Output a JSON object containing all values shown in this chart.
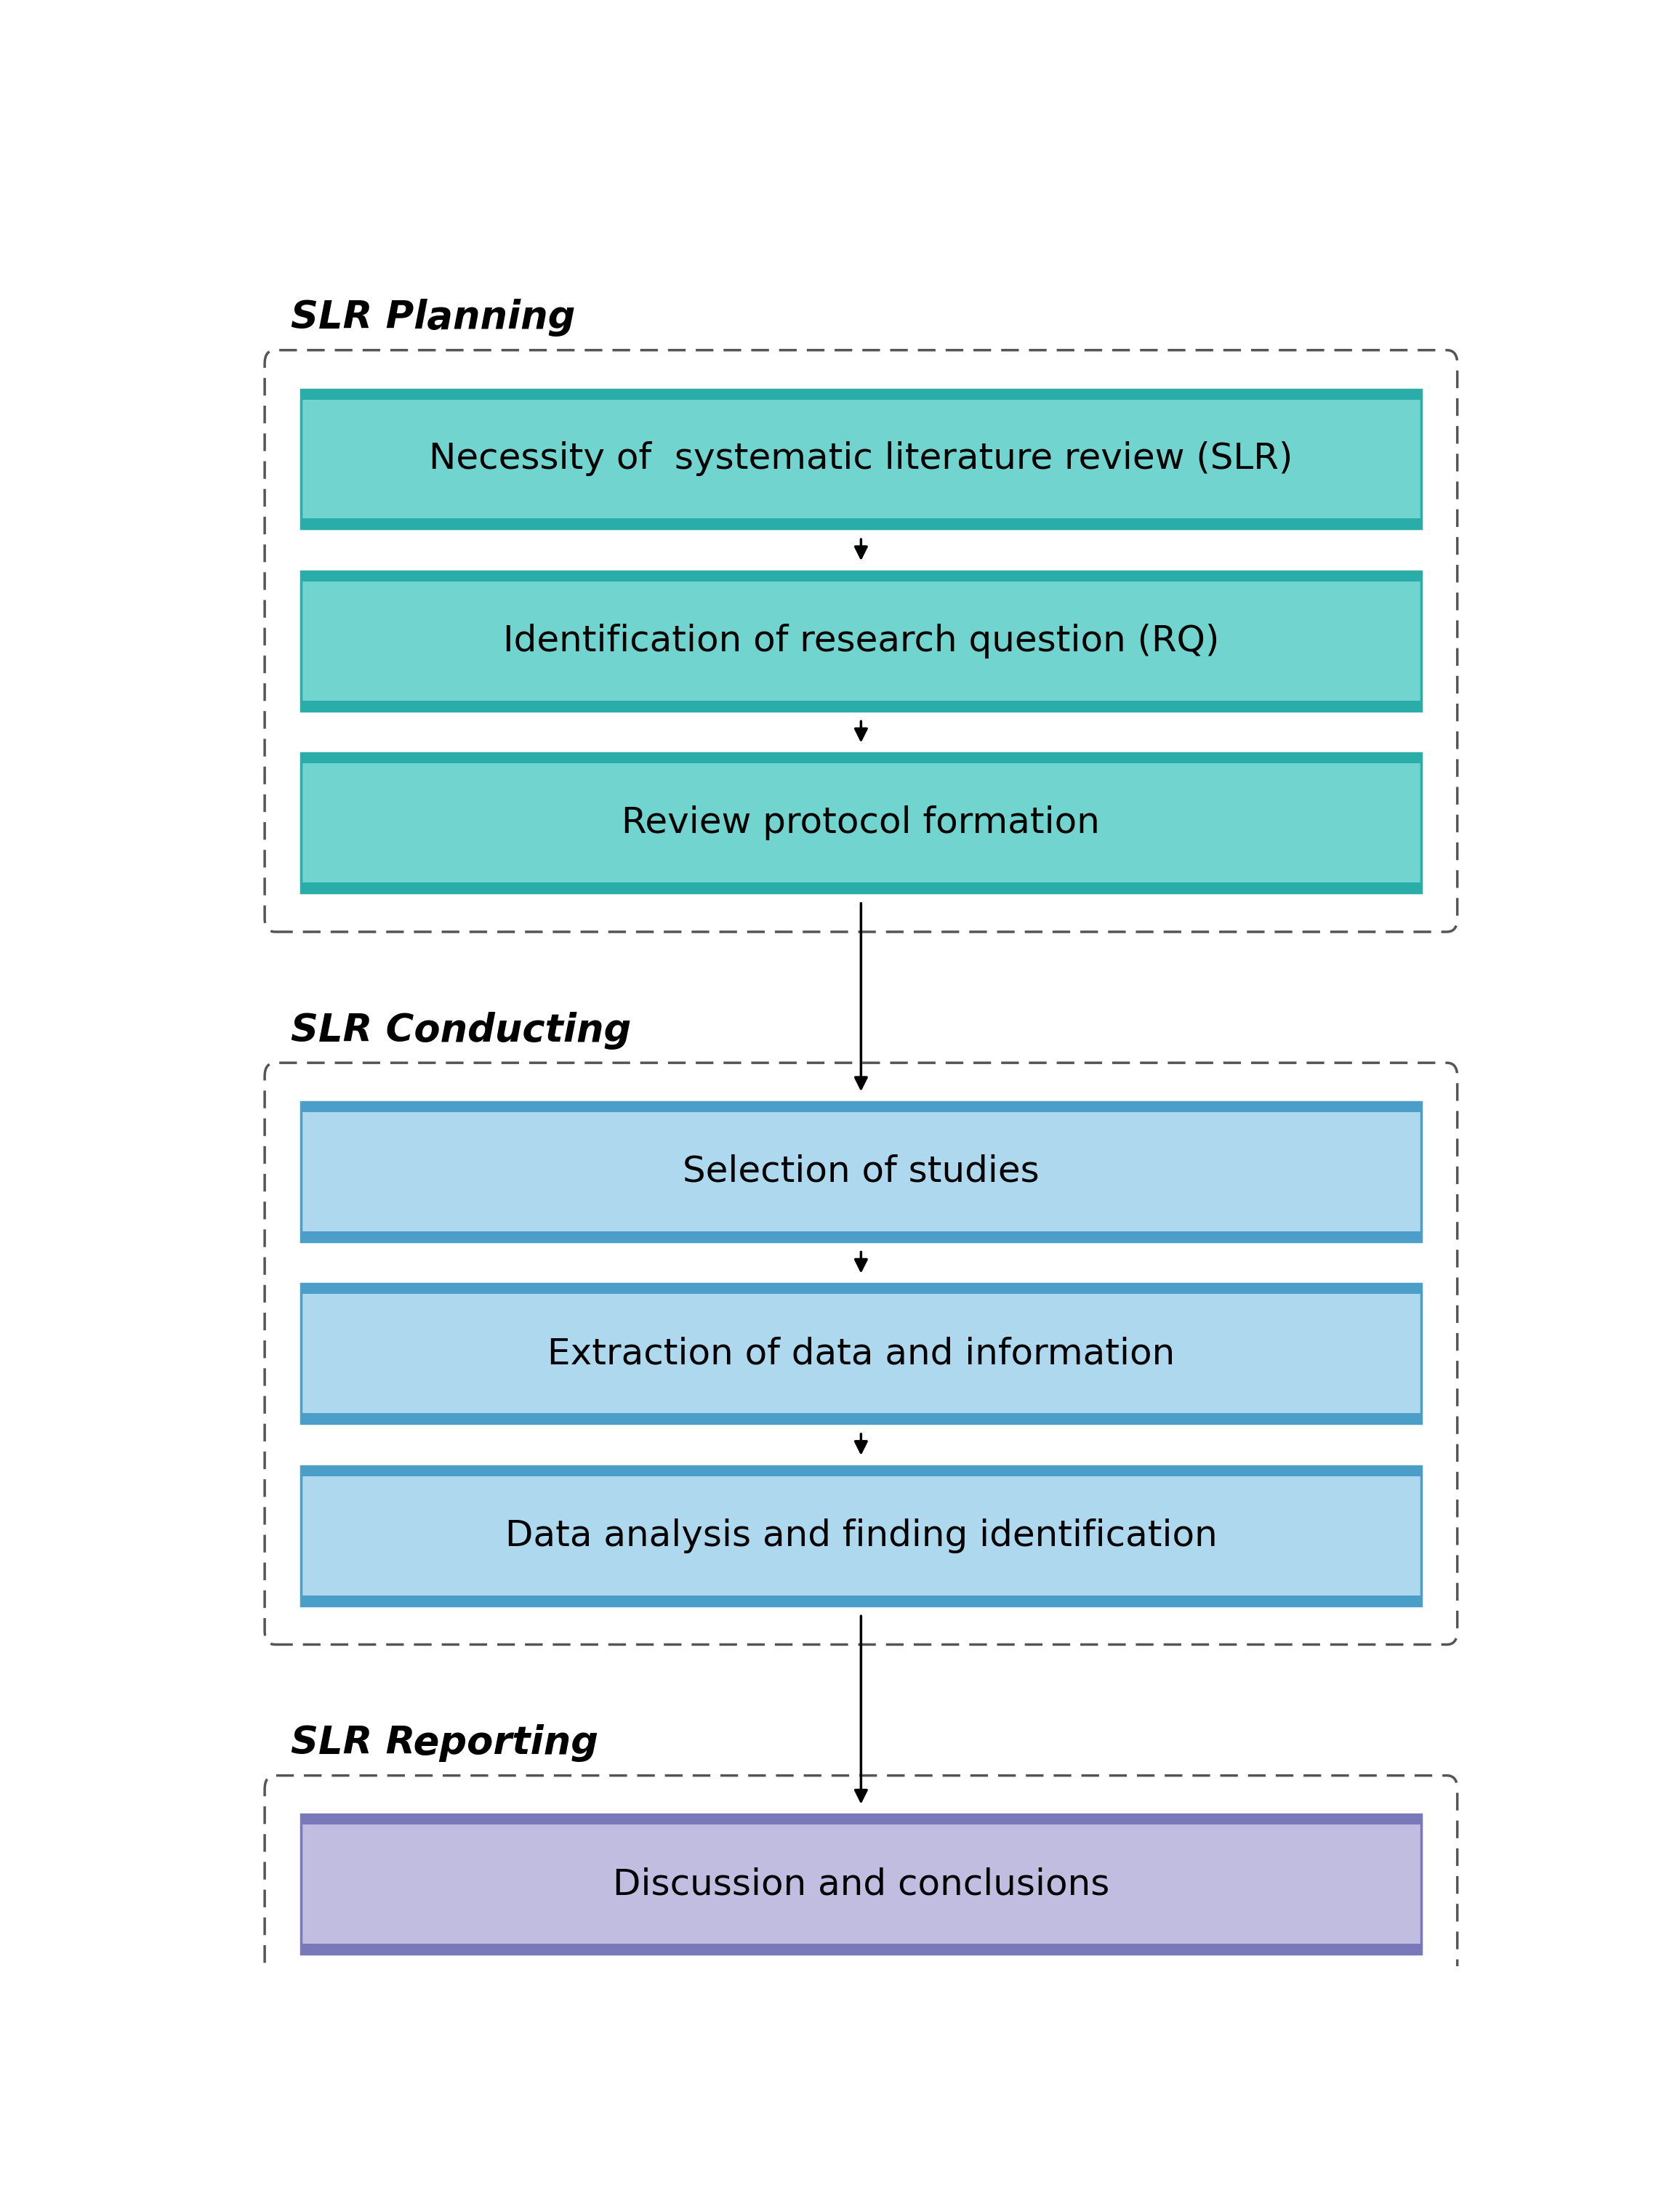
{
  "sections": [
    {
      "label": "SLR Planning",
      "box_color": "#72D4CF",
      "border_color": "#2AADA8",
      "boxes": [
        {
          "text": "Necessity of  systematic literature review (SLR)"
        },
        {
          "text": "Identification of research question (RQ)"
        },
        {
          "text": "Review protocol formation"
        }
      ]
    },
    {
      "label": "SLR Conducting",
      "box_color": "#ADD8EE",
      "border_color": "#4B9EC8",
      "boxes": [
        {
          "text": "Selection of studies"
        },
        {
          "text": "Extraction of data and information"
        },
        {
          "text": "Data analysis and finding identification"
        }
      ]
    },
    {
      "label": "SLR Reporting",
      "box_color": "#C0BDE0",
      "border_color": "#7878BB",
      "boxes": [
        {
          "text": "Discussion and conclusions"
        }
      ]
    }
  ],
  "text_color": "#000000",
  "label_color": "#000000",
  "arrow_color": "#000000",
  "bg_color": "#ffffff",
  "font_size_box": 36,
  "font_size_label": 38
}
